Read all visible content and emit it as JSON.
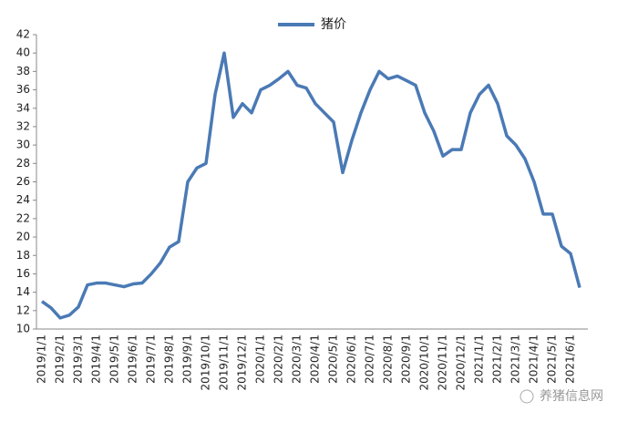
{
  "chart_data": {
    "type": "line",
    "categories": [
      "2019/1/1",
      null,
      "2019/2/1",
      null,
      "2019/3/1",
      null,
      "2019/4/1",
      null,
      "2019/5/1",
      null,
      "2019/6/1",
      null,
      "2019/7/1",
      null,
      "2019/8/1",
      null,
      "2019/9/1",
      null,
      "2019/10/1",
      null,
      "2019/11/1",
      null,
      "2019/12/1",
      null,
      "2020/1/1",
      null,
      "2020/2/1",
      null,
      "2020/3/1",
      null,
      "2020/4/1",
      null,
      "2020/5/1",
      null,
      "2020/6/1",
      null,
      "2020/7/1",
      null,
      "2020/8/1",
      null,
      "2020/9/1",
      null,
      "2020/10/1",
      null,
      "2020/11/1",
      null,
      "2020/12/1",
      null,
      "2021/1/1",
      null,
      "2021/2/1",
      null,
      "2021/3/1",
      null,
      "2021/4/1",
      null,
      "2021/5/1",
      null,
      "2021/6/1",
      null
    ],
    "series": [
      {
        "name": "猪价",
        "color": "#4a7ab5",
        "values": [
          13.0,
          12.3,
          11.2,
          11.5,
          12.4,
          14.8,
          15.0,
          15.0,
          14.8,
          14.6,
          14.9,
          15.0,
          16.0,
          17.2,
          18.9,
          19.5,
          26.0,
          27.5,
          28.0,
          35.5,
          40.0,
          33.0,
          34.5,
          33.5,
          36.0,
          36.5,
          37.2,
          38.0,
          36.5,
          36.2,
          34.5,
          33.5,
          32.5,
          27.0,
          30.5,
          33.5,
          36.0,
          38.0,
          37.2,
          37.5,
          37.0,
          36.5,
          33.5,
          31.5,
          28.8,
          29.5,
          29.5,
          33.5,
          35.5,
          36.5,
          34.5,
          31.0,
          30.0,
          28.5,
          26.0,
          22.5,
          22.5,
          19.0,
          18.2,
          14.5
        ]
      }
    ],
    "ylim": [
      10,
      42
    ],
    "yticks": [
      10,
      12,
      14,
      16,
      18,
      20,
      22,
      24,
      26,
      28,
      30,
      32,
      34,
      36,
      38,
      40,
      42
    ],
    "grid": false,
    "legend": "top",
    "watermark": "养猪信息网"
  }
}
